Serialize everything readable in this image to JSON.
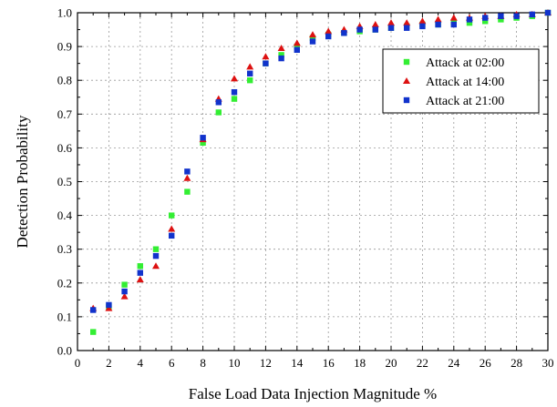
{
  "chart_data": {
    "type": "scatter",
    "title": "",
    "xlabel": "False Load Data Injection Magnitude %",
    "ylabel": "Detection Probability",
    "xlim": [
      0,
      30
    ],
    "ylim": [
      0,
      1.0
    ],
    "xticks": [
      0,
      2,
      4,
      6,
      8,
      10,
      12,
      14,
      16,
      18,
      20,
      22,
      24,
      26,
      28,
      30
    ],
    "yticks": [
      0.0,
      0.1,
      0.2,
      0.3,
      0.4,
      0.5,
      0.6,
      0.7,
      0.8,
      0.9,
      1.0
    ],
    "ytick_labels": [
      "0.0",
      "0.1",
      "0.2",
      "0.3",
      "0.4",
      "0.5",
      "0.6",
      "0.7",
      "0.8",
      "0.9",
      "1.0"
    ],
    "grid": true,
    "legend_position": "top-right",
    "x": [
      1,
      2,
      3,
      4,
      5,
      6,
      7,
      8,
      9,
      10,
      11,
      12,
      13,
      14,
      15,
      16,
      17,
      18,
      19,
      20,
      21,
      22,
      23,
      24,
      25,
      26,
      27,
      28,
      29,
      30
    ],
    "series": [
      {
        "name": "Attack at 02:00",
        "color": "#33ee33",
        "marker": "square",
        "values": [
          0.055,
          0.13,
          0.195,
          0.25,
          0.3,
          0.4,
          0.47,
          0.615,
          0.705,
          0.745,
          0.8,
          0.85,
          0.875,
          0.9,
          0.925,
          0.935,
          0.94,
          0.945,
          0.95,
          0.955,
          0.96,
          0.965,
          0.965,
          0.97,
          0.97,
          0.975,
          0.98,
          0.985,
          0.99,
          1.0
        ]
      },
      {
        "name": "Attack at 14:00",
        "color": "#dd1111",
        "marker": "triangle",
        "values": [
          0.125,
          0.125,
          0.16,
          0.21,
          0.25,
          0.36,
          0.51,
          0.625,
          0.745,
          0.805,
          0.84,
          0.87,
          0.895,
          0.91,
          0.935,
          0.945,
          0.95,
          0.96,
          0.965,
          0.97,
          0.97,
          0.975,
          0.98,
          0.985,
          0.985,
          0.99,
          0.99,
          0.995,
          0.995,
          1.0
        ]
      },
      {
        "name": "Attack at 21:00",
        "color": "#1133cc",
        "marker": "square",
        "values": [
          0.12,
          0.135,
          0.175,
          0.23,
          0.28,
          0.34,
          0.53,
          0.63,
          0.735,
          0.765,
          0.82,
          0.85,
          0.865,
          0.89,
          0.915,
          0.93,
          0.94,
          0.95,
          0.95,
          0.955,
          0.955,
          0.96,
          0.965,
          0.965,
          0.98,
          0.985,
          0.99,
          0.99,
          0.995,
          1.0
        ]
      }
    ]
  }
}
